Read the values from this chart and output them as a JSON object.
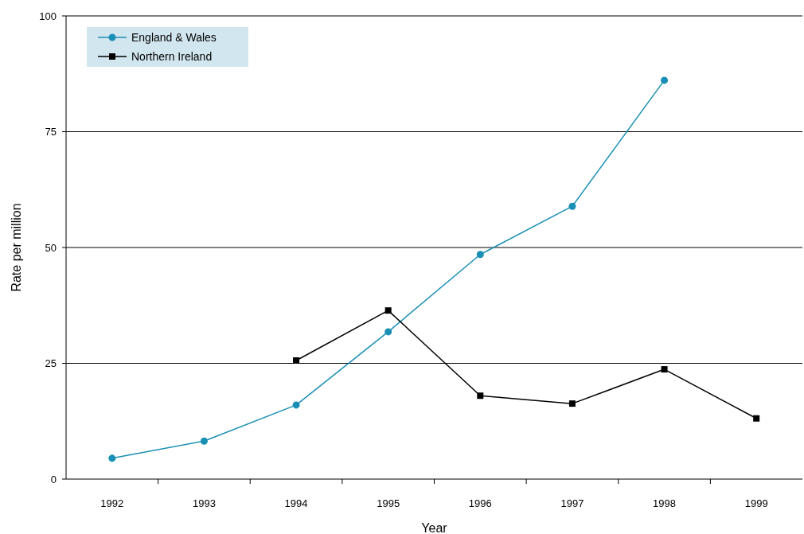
{
  "chart_data": {
    "type": "line",
    "xlabel": "Year",
    "ylabel": "Rate per million",
    "categories": [
      "1992",
      "1993",
      "1994",
      "1995",
      "1996",
      "1997",
      "1998",
      "1999"
    ],
    "series": [
      {
        "name": "England & Wales",
        "color": "#1a8fb5",
        "marker": "circle",
        "values": [
          4.5,
          8.2,
          16.0,
          31.8,
          48.5,
          58.9,
          86.1,
          null
        ]
      },
      {
        "name": "Northern Ireland",
        "color": "#000000",
        "marker": "square",
        "values": [
          null,
          null,
          25.6,
          36.4,
          18.0,
          16.3,
          23.7,
          13.1
        ]
      }
    ],
    "ylim": [
      0,
      100
    ],
    "yticks": [
      0,
      25,
      50,
      75,
      100
    ],
    "grid": "y",
    "legend": "top left"
  }
}
